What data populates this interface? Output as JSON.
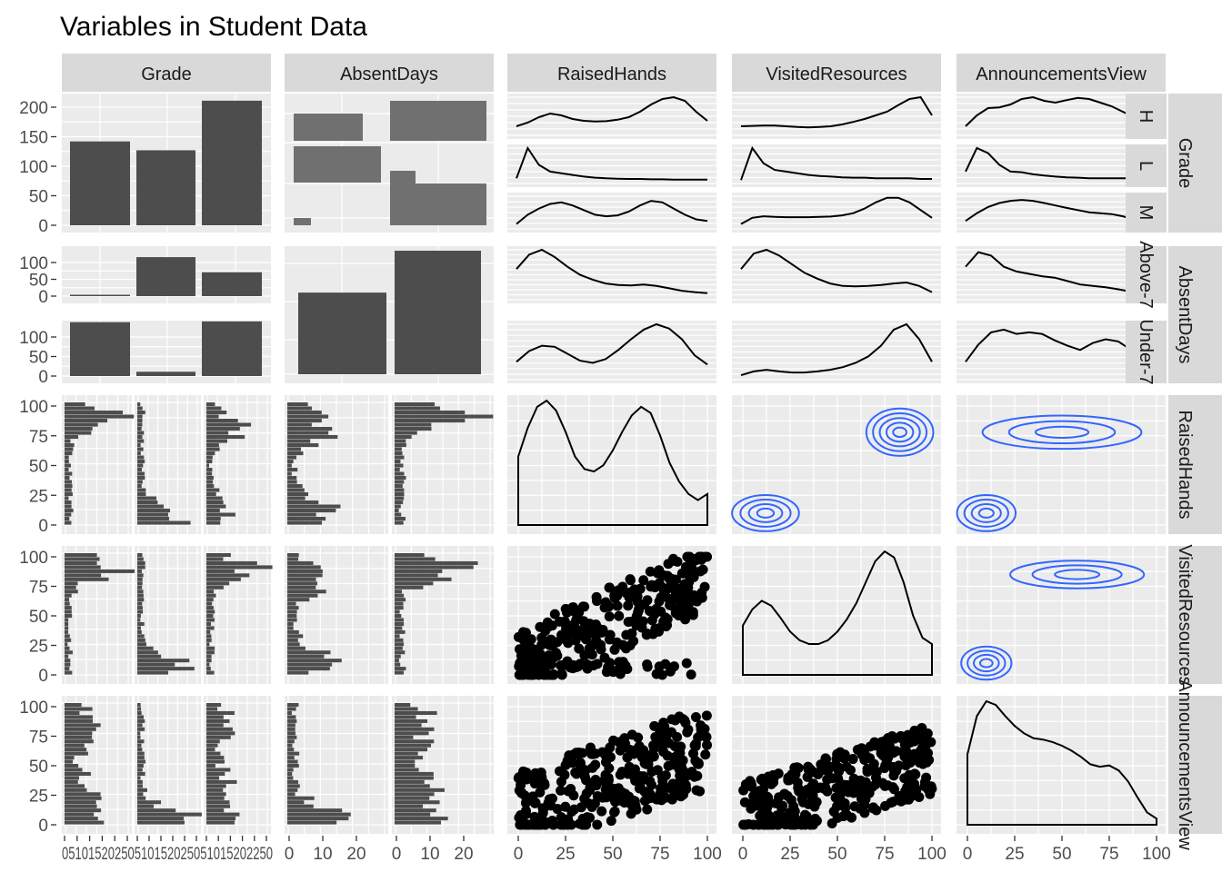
{
  "title": "Variables in Student Data",
  "chart_data": {
    "type": "pairs",
    "variables": [
      "Grade",
      "AbsentDays",
      "RaisedHands",
      "VisitedResources",
      "AnnouncementsView"
    ],
    "row_strip_labels": [
      "Grade",
      "AbsentDays",
      "RaisedHands",
      "VisitedResources",
      "AnnouncementsView"
    ],
    "grade_levels": [
      "H",
      "L",
      "M"
    ],
    "absent_levels": [
      "Above-7",
      "Under-7"
    ],
    "grid": true,
    "colors": {
      "panel_bg": "#EBEBEB",
      "strip_bg": "#D9D9D9",
      "bar": "#4D4D4D",
      "mosaic": "#707070",
      "contour": "#3366FF",
      "line": "#000000"
    },
    "axis_ticks": {
      "row1_y": [
        "200",
        "150",
        "100",
        "50",
        "0"
      ],
      "row2_y": [
        "100",
        "50",
        "0"
      ],
      "numeric_y": [
        "100",
        "75",
        "50",
        "25",
        "0"
      ],
      "grade_x": [
        "05",
        "10",
        "15",
        "20",
        "25"
      ],
      "absent_x": [
        "0",
        "10",
        "20"
      ],
      "numeric_x": [
        "0",
        "25",
        "50",
        "75",
        "100"
      ]
    },
    "grade_counts": {
      "H": 142,
      "L": 127,
      "M": 211
    },
    "grade_by_absent": {
      "Above-7": {
        "H": 4,
        "L": 116,
        "M": 71
      },
      "Under-7": {
        "H": 138,
        "L": 11,
        "M": 140
      }
    },
    "absent_counts": {
      "Above-7": 191,
      "Under-7": 289
    },
    "raisedhands_density": [
      0.55,
      0.78,
      0.95,
      1.0,
      0.92,
      0.75,
      0.55,
      0.45,
      0.43,
      0.48,
      0.6,
      0.75,
      0.88,
      0.95,
      0.9,
      0.72,
      0.5,
      0.35,
      0.25,
      0.2,
      0.25
    ],
    "visited_density": [
      0.4,
      0.53,
      0.6,
      0.56,
      0.46,
      0.35,
      0.28,
      0.25,
      0.25,
      0.28,
      0.35,
      0.45,
      0.58,
      0.75,
      0.92,
      1.0,
      0.95,
      0.75,
      0.48,
      0.3,
      0.25
    ],
    "announcements_density": [
      0.57,
      0.88,
      1.0,
      0.97,
      0.88,
      0.8,
      0.74,
      0.7,
      0.69,
      0.67,
      0.64,
      0.6,
      0.55,
      0.49,
      0.47,
      0.48,
      0.44,
      0.35,
      0.22,
      0.1,
      0.05
    ]
  }
}
